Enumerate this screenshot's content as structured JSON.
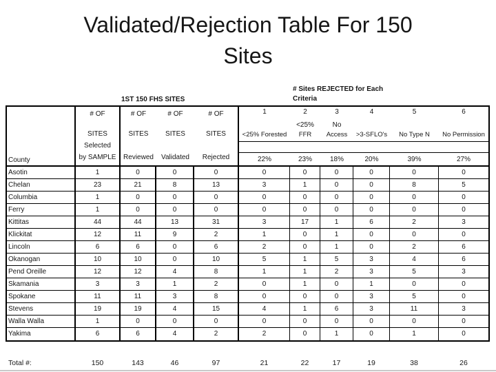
{
  "title": {
    "line1": "Validated/Rejection Table For 150",
    "line2": "Sites"
  },
  "table": {
    "left_header": "1ST 150 FHS SITES",
    "right_header_line1": "# Sites REJECTED for Each",
    "right_header_line2": "Criteria",
    "county_label": "County",
    "site_columns": [
      {
        "l1": "# OF",
        "l2": "SITES",
        "l3": "Selected",
        "l4": "by SAMPLE"
      },
      {
        "l1": "# OF",
        "l2": "SITES",
        "l4": "Reviewed"
      },
      {
        "l1": "# OF",
        "l2": "SITES",
        "l4": "Validated"
      },
      {
        "l1": "# OF",
        "l2": "SITES",
        "l4": "Rejected"
      }
    ],
    "criteria_columns": [
      {
        "num": "1",
        "sub": "",
        "label": "<25% Forested",
        "pct": "22%"
      },
      {
        "num": "2",
        "sub": "<25%",
        "label": "FFR",
        "pct": "23%"
      },
      {
        "num": "3",
        "sub": "No",
        "label": "Access",
        "pct": "18%"
      },
      {
        "num": "4",
        "sub": "",
        "label": ">3-SFLO's",
        "pct": "20%"
      },
      {
        "num": "5",
        "sub": "",
        "label": "No Type N",
        "pct": "39%"
      },
      {
        "num": "6",
        "sub": "",
        "label": "No Permission",
        "pct": "27%"
      }
    ],
    "rows": [
      {
        "county": "Asotin",
        "values": [
          1,
          0,
          0,
          0,
          0,
          0,
          0,
          0,
          0,
          0
        ]
      },
      {
        "county": "Chelan",
        "values": [
          23,
          21,
          8,
          13,
          3,
          1,
          0,
          0,
          8,
          5
        ]
      },
      {
        "county": "Columbia",
        "values": [
          1,
          0,
          0,
          0,
          0,
          0,
          0,
          0,
          0,
          0
        ]
      },
      {
        "county": "Ferry",
        "values": [
          1,
          0,
          0,
          0,
          0,
          0,
          0,
          0,
          0,
          0
        ]
      },
      {
        "county": "Kittitas",
        "values": [
          44,
          44,
          13,
          31,
          3,
          17,
          1,
          6,
          2,
          3
        ]
      },
      {
        "county": "Klickitat",
        "values": [
          12,
          11,
          9,
          2,
          1,
          0,
          1,
          0,
          0,
          0
        ]
      },
      {
        "county": "Lincoln",
        "values": [
          6,
          6,
          0,
          6,
          2,
          0,
          1,
          0,
          2,
          6
        ]
      },
      {
        "county": "Okanogan",
        "values": [
          10,
          10,
          0,
          10,
          5,
          1,
          5,
          3,
          4,
          6
        ]
      },
      {
        "county": "Pend Oreille",
        "values": [
          12,
          12,
          4,
          8,
          1,
          1,
          2,
          3,
          5,
          3
        ]
      },
      {
        "county": "Skamania",
        "values": [
          3,
          3,
          1,
          2,
          0,
          1,
          0,
          1,
          0,
          0
        ]
      },
      {
        "county": "Spokane",
        "values": [
          11,
          11,
          3,
          8,
          0,
          0,
          0,
          3,
          5,
          0
        ]
      },
      {
        "county": "Stevens",
        "values": [
          19,
          19,
          4,
          15,
          4,
          1,
          6,
          3,
          11,
          3
        ]
      },
      {
        "county": "Walla Walla",
        "values": [
          1,
          0,
          0,
          0,
          0,
          0,
          0,
          0,
          0,
          0
        ]
      },
      {
        "county": "Yakima",
        "values": [
          6,
          6,
          4,
          2,
          2,
          0,
          1,
          0,
          1,
          0
        ]
      }
    ],
    "total_label": "Total #:",
    "totals": [
      150,
      143,
      46,
      97,
      21,
      22,
      17,
      19,
      38,
      26
    ]
  },
  "colors": {
    "border": "#000000",
    "text": "#161616",
    "background": "#ffffff",
    "slide_edge": "#c9c9c9"
  }
}
